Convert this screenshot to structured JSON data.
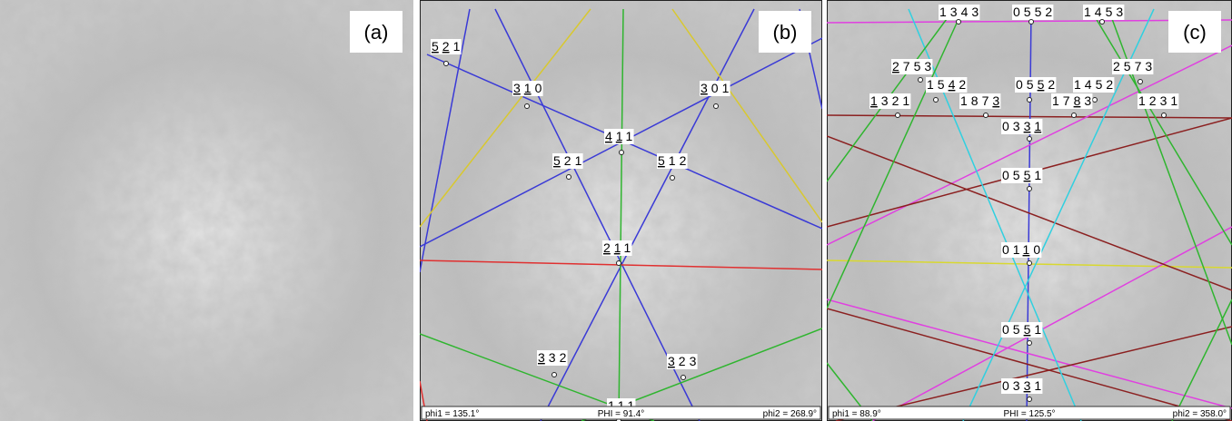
{
  "panels": [
    {
      "tag": "(a)"
    },
    {
      "tag": "(b)",
      "labels": [
        {
          "digits": [
            "5",
            "2",
            "1"
          ],
          "neg": [
            true,
            true,
            false
          ]
        },
        {
          "digits": [
            "3",
            "1",
            "0"
          ],
          "neg": [
            true,
            true,
            false
          ]
        },
        {
          "digits": [
            "3",
            "0",
            "1"
          ],
          "neg": [
            true,
            false,
            false
          ]
        },
        {
          "digits": [
            "4",
            "1",
            "1"
          ],
          "neg": [
            true,
            true,
            false
          ]
        },
        {
          "digits": [
            "5",
            "2",
            "1"
          ],
          "neg": [
            true,
            false,
            false
          ]
        },
        {
          "digits": [
            "5",
            "1",
            "2"
          ],
          "neg": [
            true,
            false,
            false
          ]
        },
        {
          "digits": [
            "2",
            "1",
            "1"
          ],
          "neg": [
            true,
            true,
            false
          ]
        },
        {
          "digits": [
            "3",
            "3",
            "2"
          ],
          "neg": [
            true,
            false,
            false
          ]
        },
        {
          "digits": [
            "3",
            "2",
            "3"
          ],
          "neg": [
            true,
            false,
            false
          ]
        },
        {
          "digits": [
            "1",
            "1",
            "1"
          ],
          "neg": [
            false,
            false,
            false
          ]
        }
      ],
      "footer": [
        "phi1 = 135.1°",
        "PHI = 91.4°",
        "phi2 = 268.9°"
      ]
    },
    {
      "tag": "(c)",
      "labels": [
        {
          "digits": [
            "1",
            "3",
            "4",
            "3"
          ],
          "neg": [
            false,
            false,
            false,
            false
          ]
        },
        {
          "digits": [
            "0",
            "5",
            "5",
            "2"
          ],
          "neg": [
            false,
            false,
            false,
            false
          ]
        },
        {
          "digits": [
            "1",
            "4",
            "5",
            "3"
          ],
          "neg": [
            false,
            false,
            false,
            false
          ]
        },
        {
          "digits": [
            "2",
            "7",
            "5",
            "3"
          ],
          "neg": [
            true,
            false,
            false,
            false
          ]
        },
        {
          "digits": [
            "1",
            "5",
            "4",
            "2"
          ],
          "neg": [
            false,
            false,
            true,
            false
          ]
        },
        {
          "digits": [
            "1",
            "3",
            "2",
            "1"
          ],
          "neg": [
            true,
            false,
            false,
            false
          ]
        },
        {
          "digits": [
            "1",
            "8",
            "7",
            "3"
          ],
          "neg": [
            false,
            false,
            false,
            true
          ]
        },
        {
          "digits": [
            "0",
            "5",
            "5",
            "2"
          ],
          "neg": [
            false,
            false,
            true,
            false
          ]
        },
        {
          "digits": [
            "1",
            "4",
            "5",
            "2"
          ],
          "neg": [
            false,
            false,
            false,
            false
          ]
        },
        {
          "digits": [
            "1",
            "7",
            "8",
            "3"
          ],
          "neg": [
            false,
            false,
            true,
            false
          ]
        },
        {
          "digits": [
            "2",
            "5",
            "7",
            "3"
          ],
          "neg": [
            false,
            false,
            false,
            false
          ]
        },
        {
          "digits": [
            "1",
            "2",
            "3",
            "1"
          ],
          "neg": [
            false,
            false,
            false,
            false
          ]
        },
        {
          "digits": [
            "0",
            "3",
            "3",
            "1"
          ],
          "neg": [
            false,
            false,
            true,
            true
          ]
        },
        {
          "digits": [
            "0",
            "5",
            "5",
            "1"
          ],
          "neg": [
            false,
            false,
            true,
            false
          ]
        },
        {
          "digits": [
            "0",
            "1",
            "1",
            "0"
          ],
          "neg": [
            false,
            false,
            true,
            false
          ]
        },
        {
          "digits": [
            "0",
            "5",
            "5",
            "1"
          ],
          "neg": [
            false,
            false,
            true,
            false
          ]
        },
        {
          "digits": [
            "0",
            "3",
            "3",
            "1"
          ],
          "neg": [
            false,
            false,
            true,
            false
          ]
        }
      ],
      "footer": [
        "phi1 = 88.9°",
        "PHI = 125.5°",
        "phi2 = 358.0°"
      ]
    }
  ]
}
